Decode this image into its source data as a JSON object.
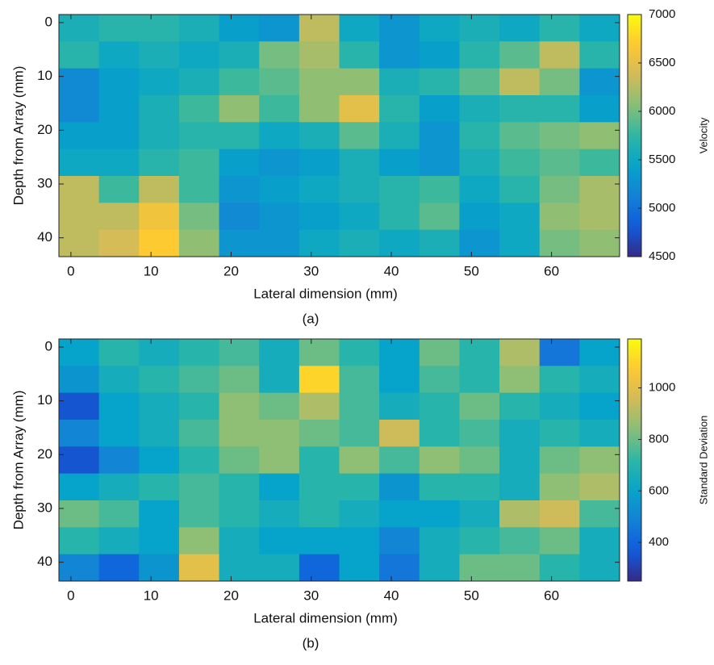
{
  "chart_data": [
    {
      "type": "heatmap",
      "caption": "(a)",
      "xlabel": "Lateral dimension (mm)",
      "ylabel": "Depth from Array (mm)",
      "colorbar_label": "Velocity",
      "colormap": "parula",
      "x": [
        1,
        6,
        11,
        16,
        21,
        26,
        31,
        36,
        41,
        46,
        51,
        56,
        61,
        66
      ],
      "y": [
        1,
        6,
        11,
        16,
        21,
        26,
        31,
        36,
        41
      ],
      "z": [
        [
          5600,
          5700,
          5700,
          5600,
          5400,
          5300,
          6300,
          5500,
          5300,
          5500,
          5600,
          5500,
          5700,
          5500
        ],
        [
          5700,
          5500,
          5600,
          5500,
          5600,
          6000,
          6200,
          5700,
          5300,
          5400,
          5700,
          5900,
          6300,
          5700
        ],
        [
          5200,
          5400,
          5500,
          5600,
          5800,
          5900,
          6100,
          6100,
          5600,
          5700,
          5900,
          6300,
          6000,
          5300
        ],
        [
          5200,
          5400,
          5600,
          5800,
          6100,
          5800,
          6100,
          6500,
          5700,
          5400,
          5600,
          5700,
          5700,
          5400
        ],
        [
          5400,
          5400,
          5600,
          5700,
          5700,
          5500,
          5600,
          5900,
          5600,
          5300,
          5700,
          5900,
          6000,
          6100
        ],
        [
          5500,
          5500,
          5700,
          5800,
          5400,
          5300,
          5400,
          5600,
          5400,
          5300,
          5600,
          5800,
          5900,
          5800
        ],
        [
          6300,
          5800,
          6300,
          5800,
          5300,
          5400,
          5500,
          5600,
          5700,
          5800,
          5500,
          5700,
          6000,
          6200
        ],
        [
          6300,
          6300,
          6600,
          6000,
          5200,
          5300,
          5400,
          5500,
          5700,
          5900,
          5400,
          5500,
          6100,
          6200
        ],
        [
          6300,
          6400,
          6700,
          6100,
          5300,
          5300,
          5500,
          5600,
          5500,
          5600,
          5300,
          5500,
          6000,
          6100
        ]
      ],
      "xlim": [
        -1.5,
        68.5
      ],
      "ylim": [
        -1.5,
        43.5
      ],
      "xticks": [
        0,
        10,
        20,
        30,
        40,
        50,
        60
      ],
      "yticks": [
        0,
        10,
        20,
        30,
        40
      ],
      "clim": [
        4500,
        7000
      ],
      "cticks": [
        4500,
        5000,
        5500,
        6000,
        6500,
        7000
      ]
    },
    {
      "type": "heatmap",
      "caption": "(b)",
      "xlabel": "Lateral dimension (mm)",
      "ylabel": "Depth from Array (mm)",
      "colorbar_label": "Standard Deviation",
      "colormap": "parula",
      "x": [
        1,
        6,
        11,
        16,
        21,
        26,
        31,
        36,
        41,
        46,
        51,
        56,
        61,
        66
      ],
      "y": [
        1,
        6,
        11,
        16,
        21,
        26,
        31,
        36,
        41
      ],
      "z": [
        [
          600,
          700,
          650,
          700,
          750,
          650,
          800,
          700,
          600,
          800,
          700,
          900,
          450,
          600
        ],
        [
          550,
          650,
          700,
          750,
          800,
          650,
          1100,
          750,
          600,
          750,
          700,
          850,
          700,
          650
        ],
        [
          350,
          600,
          650,
          700,
          850,
          800,
          900,
          750,
          650,
          700,
          800,
          700,
          650,
          600
        ],
        [
          500,
          600,
          650,
          750,
          850,
          850,
          800,
          750,
          950,
          700,
          750,
          650,
          700,
          650
        ],
        [
          350,
          500,
          600,
          700,
          800,
          850,
          700,
          850,
          750,
          850,
          800,
          650,
          800,
          850
        ],
        [
          600,
          650,
          700,
          750,
          700,
          600,
          700,
          700,
          550,
          700,
          700,
          650,
          850,
          900
        ],
        [
          800,
          750,
          600,
          750,
          700,
          650,
          700,
          650,
          600,
          600,
          650,
          900,
          950,
          750
        ],
        [
          700,
          650,
          600,
          850,
          650,
          600,
          600,
          600,
          500,
          650,
          700,
          750,
          800,
          650
        ],
        [
          500,
          400,
          550,
          1000,
          650,
          650,
          400,
          600,
          450,
          650,
          800,
          800,
          700,
          650
        ]
      ],
      "xlim": [
        -1.5,
        68.5
      ],
      "ylim": [
        -1.5,
        43.5
      ],
      "xticks": [
        0,
        10,
        20,
        30,
        40,
        50,
        60
      ],
      "yticks": [
        0,
        10,
        20,
        30,
        40
      ],
      "clim": [
        250,
        1190
      ],
      "cticks": [
        400,
        600,
        800,
        1000
      ]
    }
  ]
}
